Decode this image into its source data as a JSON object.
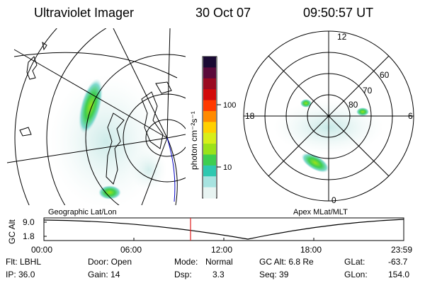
{
  "header": {
    "instrument": "Ultraviolet Imager",
    "date": "30 Oct 07",
    "time": "09:50:57 UT"
  },
  "colorbar": {
    "label": "photon cm⁻²s⁻¹",
    "ticks": [
      "100",
      "10"
    ],
    "scale": "log",
    "colors": [
      "#1a0a33",
      "#5a0a3a",
      "#9a0a20",
      "#d20a0a",
      "#ff3a00",
      "#ff8a00",
      "#ffd000",
      "#d7ee1a",
      "#9be21a",
      "#3ece50",
      "#2ec8b0",
      "#a7e3e0",
      "#e8f4f2"
    ]
  },
  "left_map": {
    "caption": "Geographic Lat/Lon"
  },
  "right_map": {
    "caption": "Apex MLat/MLT",
    "mlt_labels": {
      "top": "12",
      "left": "18",
      "right": "6",
      "bottom": "0"
    },
    "lat_labels": [
      "60",
      "70",
      "80"
    ]
  },
  "altitude_plot": {
    "ylabel": "GC Alt",
    "yticks": [
      "9.0",
      "1.8"
    ],
    "xticks": [
      "00:00",
      "06:00",
      "12:00",
      "18:00",
      "23:59"
    ],
    "marker_color": "#e02020"
  },
  "info": {
    "filter": "Flt: LBHL",
    "door": "Door: Open",
    "mode_label": "Mode:",
    "mode_value": "Normal",
    "gc_alt": "GC Alt: 6.8 Re",
    "glat_label": "GLat:",
    "glat_value": "-63.7",
    "ip": "IP: 36.0",
    "gain": "Gain: 14",
    "dsp_label": "Dsp:",
    "dsp_value": "3.3",
    "seq": "Seq: 39",
    "glon_label": "GLon:",
    "glon_value": "154.0"
  }
}
